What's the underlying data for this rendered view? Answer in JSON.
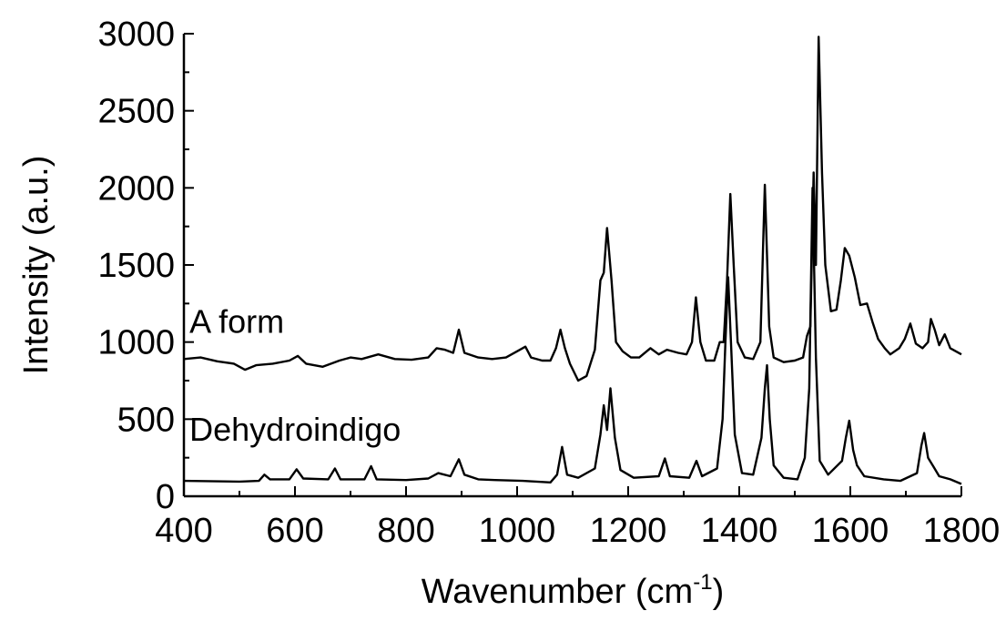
{
  "chart_data": {
    "type": "line",
    "xlabel": "Wavenumber (cm",
    "xlabel_superscript": "-1",
    "xlabel_suffix": ")",
    "ylabel": "Intensity (a.u.)",
    "xlim": [
      400,
      1800
    ],
    "ylim": [
      0,
      3000
    ],
    "x_ticks": [
      400,
      600,
      800,
      1000,
      1200,
      1400,
      1600,
      1800
    ],
    "y_ticks": [
      0,
      500,
      1000,
      1500,
      2000,
      2500,
      3000
    ],
    "grid": false,
    "legend": "none",
    "annotations": [
      {
        "text": "A form",
        "x": 410,
        "y": 1060
      },
      {
        "text": "Dehydroindigo",
        "x": 410,
        "y": 360
      }
    ],
    "series": [
      {
        "name": "A form",
        "color": "#000000",
        "points": [
          [
            400,
            890
          ],
          [
            430,
            900
          ],
          [
            460,
            875
          ],
          [
            490,
            860
          ],
          [
            510,
            820
          ],
          [
            530,
            850
          ],
          [
            560,
            860
          ],
          [
            590,
            880
          ],
          [
            605,
            910
          ],
          [
            620,
            860
          ],
          [
            650,
            840
          ],
          [
            680,
            880
          ],
          [
            700,
            900
          ],
          [
            720,
            890
          ],
          [
            750,
            920
          ],
          [
            780,
            890
          ],
          [
            810,
            885
          ],
          [
            840,
            900
          ],
          [
            855,
            960
          ],
          [
            870,
            950
          ],
          [
            885,
            930
          ],
          [
            895,
            1080
          ],
          [
            905,
            930
          ],
          [
            930,
            900
          ],
          [
            955,
            890
          ],
          [
            980,
            900
          ],
          [
            1000,
            940
          ],
          [
            1015,
            970
          ],
          [
            1025,
            900
          ],
          [
            1045,
            880
          ],
          [
            1060,
            880
          ],
          [
            1070,
            960
          ],
          [
            1078,
            1080
          ],
          [
            1086,
            960
          ],
          [
            1095,
            860
          ],
          [
            1110,
            750
          ],
          [
            1125,
            780
          ],
          [
            1140,
            950
          ],
          [
            1150,
            1400
          ],
          [
            1156,
            1450
          ],
          [
            1162,
            1740
          ],
          [
            1170,
            1400
          ],
          [
            1178,
            1000
          ],
          [
            1190,
            940
          ],
          [
            1205,
            900
          ],
          [
            1220,
            900
          ],
          [
            1240,
            960
          ],
          [
            1255,
            920
          ],
          [
            1270,
            950
          ],
          [
            1290,
            930
          ],
          [
            1305,
            920
          ],
          [
            1315,
            1000
          ],
          [
            1322,
            1290
          ],
          [
            1330,
            1000
          ],
          [
            1340,
            880
          ],
          [
            1355,
            880
          ],
          [
            1365,
            1000
          ],
          [
            1372,
            1000
          ],
          [
            1378,
            1400
          ],
          [
            1384,
            1960
          ],
          [
            1390,
            1500
          ],
          [
            1397,
            1000
          ],
          [
            1410,
            900
          ],
          [
            1425,
            890
          ],
          [
            1438,
            1000
          ],
          [
            1446,
            2020
          ],
          [
            1454,
            1100
          ],
          [
            1462,
            900
          ],
          [
            1480,
            870
          ],
          [
            1500,
            880
          ],
          [
            1515,
            900
          ],
          [
            1522,
            1040
          ],
          [
            1528,
            1100
          ],
          [
            1534,
            2100
          ],
          [
            1538,
            1500
          ],
          [
            1543,
            2980
          ],
          [
            1549,
            2100
          ],
          [
            1555,
            1500
          ],
          [
            1565,
            1200
          ],
          [
            1575,
            1210
          ],
          [
            1583,
            1400
          ],
          [
            1590,
            1610
          ],
          [
            1598,
            1560
          ],
          [
            1608,
            1420
          ],
          [
            1618,
            1240
          ],
          [
            1630,
            1250
          ],
          [
            1640,
            1130
          ],
          [
            1650,
            1020
          ],
          [
            1662,
            960
          ],
          [
            1672,
            920
          ],
          [
            1688,
            960
          ],
          [
            1698,
            1020
          ],
          [
            1708,
            1120
          ],
          [
            1718,
            990
          ],
          [
            1730,
            960
          ],
          [
            1740,
            1000
          ],
          [
            1745,
            1150
          ],
          [
            1752,
            1080
          ],
          [
            1760,
            980
          ],
          [
            1770,
            1050
          ],
          [
            1780,
            960
          ],
          [
            1790,
            940
          ],
          [
            1800,
            920
          ]
        ]
      },
      {
        "name": "Dehydroindigo",
        "color": "#000000",
        "points": [
          [
            400,
            100
          ],
          [
            500,
            95
          ],
          [
            535,
            100
          ],
          [
            545,
            140
          ],
          [
            555,
            110
          ],
          [
            590,
            110
          ],
          [
            603,
            175
          ],
          [
            615,
            115
          ],
          [
            660,
            110
          ],
          [
            672,
            180
          ],
          [
            682,
            110
          ],
          [
            725,
            110
          ],
          [
            737,
            195
          ],
          [
            747,
            110
          ],
          [
            800,
            105
          ],
          [
            840,
            115
          ],
          [
            858,
            150
          ],
          [
            880,
            130
          ],
          [
            895,
            240
          ],
          [
            905,
            140
          ],
          [
            930,
            110
          ],
          [
            960,
            105
          ],
          [
            1010,
            100
          ],
          [
            1060,
            90
          ],
          [
            1072,
            140
          ],
          [
            1081,
            320
          ],
          [
            1090,
            140
          ],
          [
            1110,
            120
          ],
          [
            1140,
            180
          ],
          [
            1150,
            400
          ],
          [
            1156,
            590
          ],
          [
            1162,
            430
          ],
          [
            1168,
            700
          ],
          [
            1176,
            380
          ],
          [
            1186,
            170
          ],
          [
            1210,
            120
          ],
          [
            1255,
            130
          ],
          [
            1266,
            245
          ],
          [
            1275,
            130
          ],
          [
            1310,
            120
          ],
          [
            1323,
            230
          ],
          [
            1333,
            130
          ],
          [
            1360,
            180
          ],
          [
            1370,
            500
          ],
          [
            1375,
            1000
          ],
          [
            1380,
            1420
          ],
          [
            1385,
            1000
          ],
          [
            1392,
            400
          ],
          [
            1405,
            150
          ],
          [
            1425,
            140
          ],
          [
            1440,
            380
          ],
          [
            1446,
            700
          ],
          [
            1450,
            850
          ],
          [
            1455,
            500
          ],
          [
            1462,
            200
          ],
          [
            1480,
            120
          ],
          [
            1505,
            110
          ],
          [
            1518,
            250
          ],
          [
            1526,
            700
          ],
          [
            1532,
            2000
          ],
          [
            1538,
            900
          ],
          [
            1545,
            230
          ],
          [
            1560,
            140
          ],
          [
            1585,
            230
          ],
          [
            1592,
            380
          ],
          [
            1598,
            490
          ],
          [
            1605,
            300
          ],
          [
            1612,
            200
          ],
          [
            1625,
            130
          ],
          [
            1660,
            110
          ],
          [
            1690,
            100
          ],
          [
            1720,
            150
          ],
          [
            1728,
            330
          ],
          [
            1733,
            410
          ],
          [
            1740,
            250
          ],
          [
            1750,
            190
          ],
          [
            1760,
            130
          ],
          [
            1780,
            110
          ],
          [
            1800,
            80
          ]
        ]
      }
    ]
  }
}
